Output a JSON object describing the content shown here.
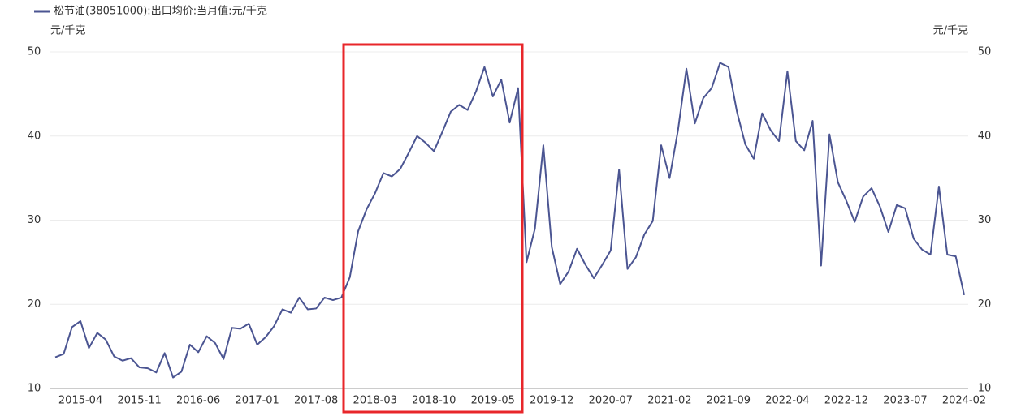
{
  "chart_data": {
    "type": "line",
    "legend_label": "松节油(38051000):出口均价:当月值:元/千克",
    "y_label": "元/千克",
    "y2_label": "元/千克",
    "categories": [
      null,
      null,
      null,
      "2015-04",
      null,
      null,
      null,
      null,
      null,
      null,
      "2015-11",
      null,
      null,
      null,
      null,
      null,
      null,
      "2016-06",
      null,
      null,
      null,
      null,
      null,
      null,
      "2017-01",
      null,
      null,
      null,
      null,
      null,
      null,
      "2017-08",
      null,
      null,
      null,
      null,
      null,
      null,
      "2018-03",
      null,
      null,
      null,
      null,
      null,
      null,
      "2018-10",
      null,
      null,
      null,
      null,
      null,
      null,
      "2019-05",
      null,
      null,
      null,
      null,
      null,
      null,
      "2019-12",
      null,
      null,
      null,
      null,
      null,
      null,
      "2020-07",
      null,
      null,
      null,
      null,
      null,
      null,
      "2021-02",
      null,
      null,
      null,
      null,
      null,
      null,
      "2021-09",
      null,
      null,
      null,
      null,
      null,
      null,
      "2022-04",
      null,
      null,
      null,
      null,
      null,
      null,
      "2022-12",
      null,
      null,
      null,
      null,
      null,
      null,
      "2023-07",
      null,
      null,
      null,
      null,
      null,
      null,
      "2024-02"
    ],
    "series": [
      {
        "name": "松节油(38051000):出口均价:当月值:元/千克",
        "color": "#4b5592",
        "values": [
          13.7,
          14.1,
          17.3,
          18.0,
          14.8,
          16.6,
          15.8,
          13.8,
          13.3,
          13.6,
          12.5,
          12.4,
          11.9,
          14.2,
          11.3,
          12.0,
          15.2,
          14.3,
          16.2,
          15.4,
          13.5,
          17.2,
          17.1,
          17.7,
          15.2,
          16.1,
          17.4,
          19.4,
          19.0,
          20.8,
          19.4,
          19.5,
          20.8,
          20.5,
          20.8,
          23.2,
          28.7,
          31.3,
          33.2,
          35.6,
          35.2,
          36.1,
          38.0,
          40.0,
          39.2,
          38.2,
          40.5,
          42.9,
          43.7,
          43.1,
          45.3,
          48.2,
          44.7,
          46.7,
          41.6,
          45.7,
          25.0,
          29.0,
          38.9,
          26.8,
          22.4,
          23.9,
          26.6,
          24.7,
          23.1,
          24.7,
          26.4,
          36.0,
          24.2,
          25.6,
          28.3,
          29.9,
          38.9,
          35.0,
          40.7,
          48.0,
          41.5,
          44.5,
          45.7,
          48.7,
          48.2,
          42.9,
          39.0,
          37.3,
          42.7,
          40.7,
          39.4,
          47.7,
          39.4,
          38.3,
          41.8,
          24.6,
          40.2,
          34.5,
          32.3,
          29.8,
          32.8,
          33.8,
          31.6,
          28.6,
          31.8,
          31.4,
          27.8,
          26.5,
          25.9,
          34.0,
          25.9,
          25.7,
          21.1
        ]
      }
    ],
    "ylim": [
      10,
      50
    ],
    "yticks": [
      10,
      20,
      30,
      40,
      50
    ],
    "y2lim": [
      10,
      50
    ],
    "y2ticks": [
      10,
      20,
      30,
      40,
      50
    ],
    "grid": true
  }
}
